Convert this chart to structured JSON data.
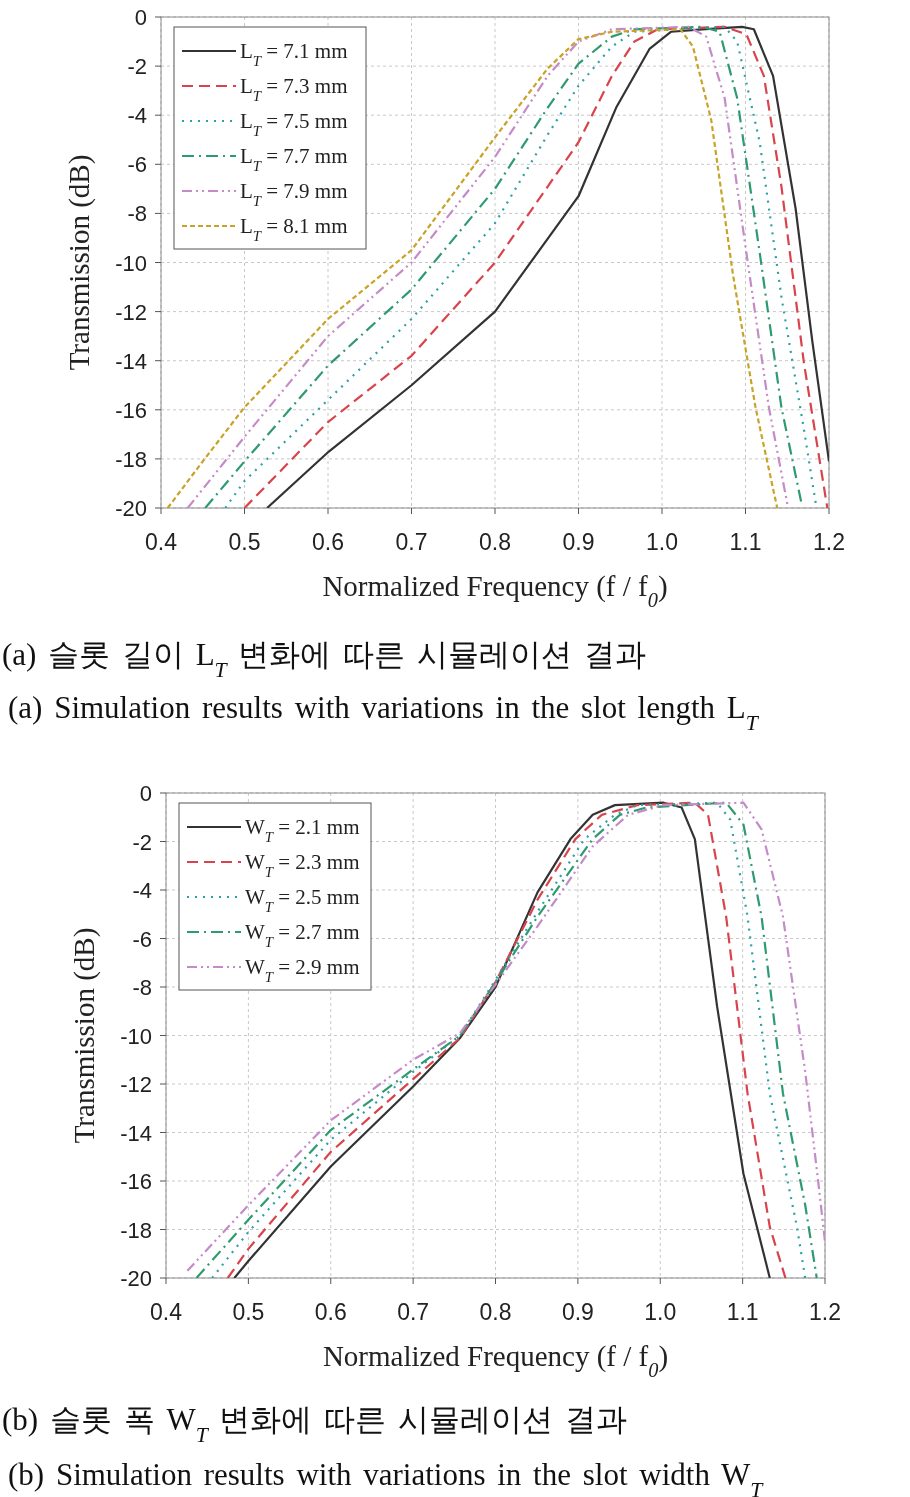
{
  "chart_data": [
    {
      "type": "line",
      "xlabel": "Normalized Frequency (f / f$_{0}$)",
      "ylabel": "Transmission (dB)",
      "xlim": [
        0.4,
        1.2
      ],
      "xticks": [
        0.4,
        0.5,
        0.6,
        0.7,
        0.8,
        0.9,
        {
          "value": 1,
          "label": "1.0"
        },
        1.1,
        1.2
      ],
      "ylim": [
        -20,
        0
      ],
      "yticks": [
        0,
        -2,
        -4,
        -6,
        -8,
        -10,
        -12,
        -14,
        -16,
        -18,
        -20
      ],
      "grid": true,
      "legend": "top left",
      "marker": "none",
      "annotations": [
        "(a) 슬롯 길이 L$_{T}$ 변화에 따른 시뮬레이션 결과",
        "(a) Simulation results with variations in the slot length L$_{T}$"
      ],
      "series": [
        {
          "name": "L$_{T}$ = 7.1 mm",
          "color": "#333333",
          "line_style": "solid",
          "x": [
            0.527,
            0.601,
            0.7,
            0.8,
            0.9,
            0.945,
            0.985,
            1.011,
            1.048,
            1.096,
            1.11,
            1.133,
            1.16,
            1.18,
            1.2
          ],
          "values": [
            -20,
            -17.7,
            -15,
            -12,
            -7.3,
            -3.7,
            -1.3,
            -0.6,
            -0.5,
            -0.4,
            -0.5,
            -2.4,
            -7.8,
            -13.2,
            -18.1
          ]
        },
        {
          "name": "L$_{T}$ = 7.3 mm",
          "color": "#d9434b",
          "line_style": "dashed",
          "x": [
            0.5,
            0.6,
            0.7,
            0.8,
            0.9,
            0.94,
            0.967,
            0.995,
            1.075,
            1.101,
            1.122,
            1.143,
            1.17,
            1.198
          ],
          "values": [
            -20,
            -16.5,
            -13.8,
            -10,
            -5.1,
            -2.4,
            -1.0,
            -0.5,
            -0.4,
            -0.7,
            -2.4,
            -6.9,
            -14.1,
            -20
          ]
        },
        {
          "name": "L$_{T}$ = 7.5 mm",
          "color": "#2aa0a8",
          "line_style": "dotted",
          "x": [
            0.477,
            0.5,
            0.6,
            0.7,
            0.8,
            0.863,
            0.9,
            0.94,
            0.967,
            1.075,
            1.09,
            1.117,
            1.143,
            1.17,
            1.185
          ],
          "values": [
            -20,
            -18.9,
            -15.6,
            -12.3,
            -8.4,
            -4.8,
            -2.8,
            -1.2,
            -0.6,
            -0.4,
            -1.0,
            -5.1,
            -11.4,
            -16.8,
            -20
          ]
        },
        {
          "name": "L$_{T}$ = 7.7 mm",
          "color": "#2e9a70",
          "line_style": "dashdot",
          "x": [
            0.453,
            0.5,
            0.6,
            0.7,
            0.8,
            0.863,
            0.9,
            0.94,
            0.967,
            1.048,
            1.069,
            1.09,
            1.117,
            1.143,
            1.167
          ],
          "values": [
            -20,
            -18.1,
            -14.2,
            -11.1,
            -7.0,
            -3.7,
            -1.9,
            -0.8,
            -0.5,
            -0.4,
            -0.6,
            -3.3,
            -9.6,
            -15.9,
            -19.8
          ]
        },
        {
          "name": "L$_{T}$ = 7.9 mm",
          "color": "#c58ac8",
          "line_style": "dashdotdot",
          "x": [
            0.432,
            0.5,
            0.6,
            0.7,
            0.8,
            0.863,
            0.9,
            0.94,
            1.032,
            1.053,
            1.075,
            1.101,
            1.128,
            1.151
          ],
          "values": [
            -20,
            -17.1,
            -13.0,
            -10.0,
            -5.7,
            -2.4,
            -1.0,
            -0.5,
            -0.4,
            -0.8,
            -3.3,
            -9.6,
            -15.9,
            -20
          ]
        },
        {
          "name": "L$_{T}$ = 8.1 mm",
          "color": "#c9a227",
          "line_style": "short_dashed",
          "x": [
            0.408,
            0.45,
            0.5,
            0.6,
            0.7,
            0.8,
            0.863,
            0.9,
            0.94,
            1.022,
            1.037,
            1.059,
            1.085,
            1.112,
            1.138
          ],
          "values": [
            -20,
            -18.1,
            -15.9,
            -12.3,
            -9.5,
            -4.9,
            -2.1,
            -0.9,
            -0.6,
            -0.5,
            -1.2,
            -4.2,
            -10.5,
            -15.9,
            -20
          ]
        }
      ]
    },
    {
      "type": "line",
      "xlabel": "Normalized Frequency (f / f$_{0}$)",
      "ylabel": "Transmission (dB)",
      "xlim": [
        0.4,
        1.2
      ],
      "xticks": [
        0.4,
        0.5,
        0.6,
        0.7,
        0.8,
        0.9,
        {
          "value": 1,
          "label": "1.0"
        },
        1.1,
        1.2
      ],
      "ylim": [
        -20,
        0
      ],
      "yticks": [
        0,
        -2,
        -4,
        -6,
        -8,
        -10,
        -12,
        -14,
        -16,
        -18,
        -20
      ],
      "grid": true,
      "legend": "top left",
      "marker": "none",
      "annotations": [
        "(b) 슬롯 폭 W$_{T}$ 변화에 따른 시뮬레이션 결과",
        "(b) Simulation results with variations in the slot width W$_{T}$"
      ],
      "series": [
        {
          "name": "W$_{T}$ = 2.1 mm",
          "color": "#333333",
          "line_style": "solid",
          "x": [
            0.483,
            0.5,
            0.6,
            0.7,
            0.757,
            0.8,
            0.851,
            0.891,
            0.918,
            0.945,
            1.004,
            1.026,
            1.042,
            1.069,
            1.101,
            1.133
          ],
          "values": [
            -20,
            -19.3,
            -15.4,
            -12.1,
            -10.1,
            -8.0,
            -4.1,
            -1.9,
            -0.9,
            -0.5,
            -0.4,
            -0.6,
            -1.9,
            -8.8,
            -15.7,
            -20
          ]
        },
        {
          "name": "W$_{T}$ = 2.3 mm",
          "color": "#d9434b",
          "line_style": "dashed",
          "x": [
            0.475,
            0.5,
            0.6,
            0.7,
            0.757,
            0.8,
            0.851,
            0.897,
            0.929,
            0.972,
            1.042,
            1.058,
            1.08,
            1.106,
            1.133,
            1.152
          ],
          "values": [
            -20,
            -18.8,
            -14.8,
            -11.8,
            -10.1,
            -7.8,
            -4.4,
            -1.9,
            -0.9,
            -0.5,
            -0.4,
            -0.9,
            -5.1,
            -12.4,
            -17.9,
            -20
          ]
        },
        {
          "name": "W$_{T}$ = 2.5 mm",
          "color": "#2aa0a8",
          "line_style": "dotted",
          "x": [
            0.456,
            0.5,
            0.6,
            0.7,
            0.757,
            0.8,
            0.851,
            0.908,
            0.945,
            0.972,
            1.069,
            1.085,
            1.106,
            1.133,
            1.166,
            1.176
          ],
          "values": [
            -20,
            -18.1,
            -14.3,
            -11.5,
            -10.0,
            -7.7,
            -4.9,
            -1.9,
            -0.9,
            -0.5,
            -0.4,
            -1.1,
            -5.1,
            -12.4,
            -17.9,
            -20
          ]
        },
        {
          "name": "W$_{T}$ = 2.7 mm",
          "color": "#2e9a70",
          "line_style": "dashdot",
          "x": [
            0.437,
            0.5,
            0.6,
            0.7,
            0.757,
            0.8,
            0.851,
            0.918,
            0.951,
            0.983,
            1.08,
            1.101,
            1.123,
            1.149,
            1.176,
            1.19
          ],
          "values": [
            -20,
            -17.6,
            -13.9,
            -11.4,
            -10.0,
            -7.8,
            -5.1,
            -1.9,
            -0.9,
            -0.6,
            -0.4,
            -1.3,
            -5.1,
            -12.4,
            -17.0,
            -20
          ]
        },
        {
          "name": "W$_{T}$ = 2.9 mm",
          "color": "#c58ac8",
          "line_style": "dashdotdot",
          "x": [
            0.426,
            0.5,
            0.6,
            0.7,
            0.757,
            0.8,
            0.851,
            0.918,
            0.961,
            1.004,
            1.101,
            1.123,
            1.149,
            1.176,
            1.192,
            1.2
          ],
          "values": [
            -19.7,
            -17.0,
            -13.5,
            -11.0,
            -9.9,
            -7.9,
            -5.5,
            -2.2,
            -0.9,
            -0.5,
            -0.4,
            -1.5,
            -5.1,
            -11.5,
            -16.1,
            -18.5
          ]
        }
      ]
    }
  ]
}
